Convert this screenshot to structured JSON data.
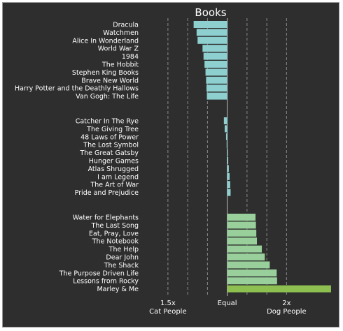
{
  "chart_data": {
    "type": "bar",
    "orientation": "horizontal",
    "title": "Books",
    "xlabel": "",
    "ylabel": "",
    "grid": true,
    "xlim": [
      1.38,
      2.35
    ],
    "ticks": [
      {
        "value": 1.5,
        "label": "1.5x"
      },
      {
        "value": 1.6,
        "label": ""
      },
      {
        "value": 1.7,
        "label": ""
      },
      {
        "value": 1.8,
        "label": "Equal"
      },
      {
        "value": 1.9,
        "label": ""
      },
      {
        "value": 2.0,
        "label": ""
      },
      {
        "value": 2.1,
        "label": "2x"
      }
    ],
    "end_labels": {
      "left": "Cat People",
      "right": "Dog People"
    },
    "baseline": 1.8,
    "groups": [
      {
        "name": "cat",
        "color": "#8ecfd0",
        "categories": [
          "Dracula",
          "Watchmen",
          "Alice In Wonderland",
          "World War Z",
          "1984",
          "The Hobbit",
          "Stephen King Books",
          "Brave New World",
          "Harry Potter and the Deathly Hallows",
          "Van Gogh: The Life"
        ],
        "values": [
          1.63,
          1.645,
          1.65,
          1.675,
          1.68,
          1.685,
          1.69,
          1.693,
          1.695,
          1.697
        ]
      },
      {
        "name": "neutral",
        "color": "#8ecfd0",
        "categories": [
          "Catcher In The Rye",
          "The Giving Tree",
          "48 Laws of Power",
          "The Lost Symbol",
          "The Great Gatsby",
          "Hunger Games",
          "Atlas Shrugged",
          "I am Legend",
          "The Art of War",
          "Pride and Prejudice"
        ],
        "values": [
          1.783,
          1.787,
          1.794,
          1.797,
          1.802,
          1.805,
          1.808,
          1.812,
          1.815,
          1.817
        ]
      },
      {
        "name": "dog",
        "color": "#98cf9a",
        "highlight_color": "#8dc050",
        "highlight_index": 9,
        "categories": [
          "Water for Elephants",
          "The Last Song",
          "Eat, Pray, Love",
          "The Notebook",
          "The Help",
          "Dear John",
          "The Shack",
          "The Purpose Driven Life",
          "Lessons from Rocky",
          "Marley & Me"
        ],
        "values": [
          1.943,
          1.945,
          1.947,
          1.95,
          1.975,
          1.99,
          2.015,
          2.05,
          2.052,
          2.325
        ]
      }
    ]
  }
}
